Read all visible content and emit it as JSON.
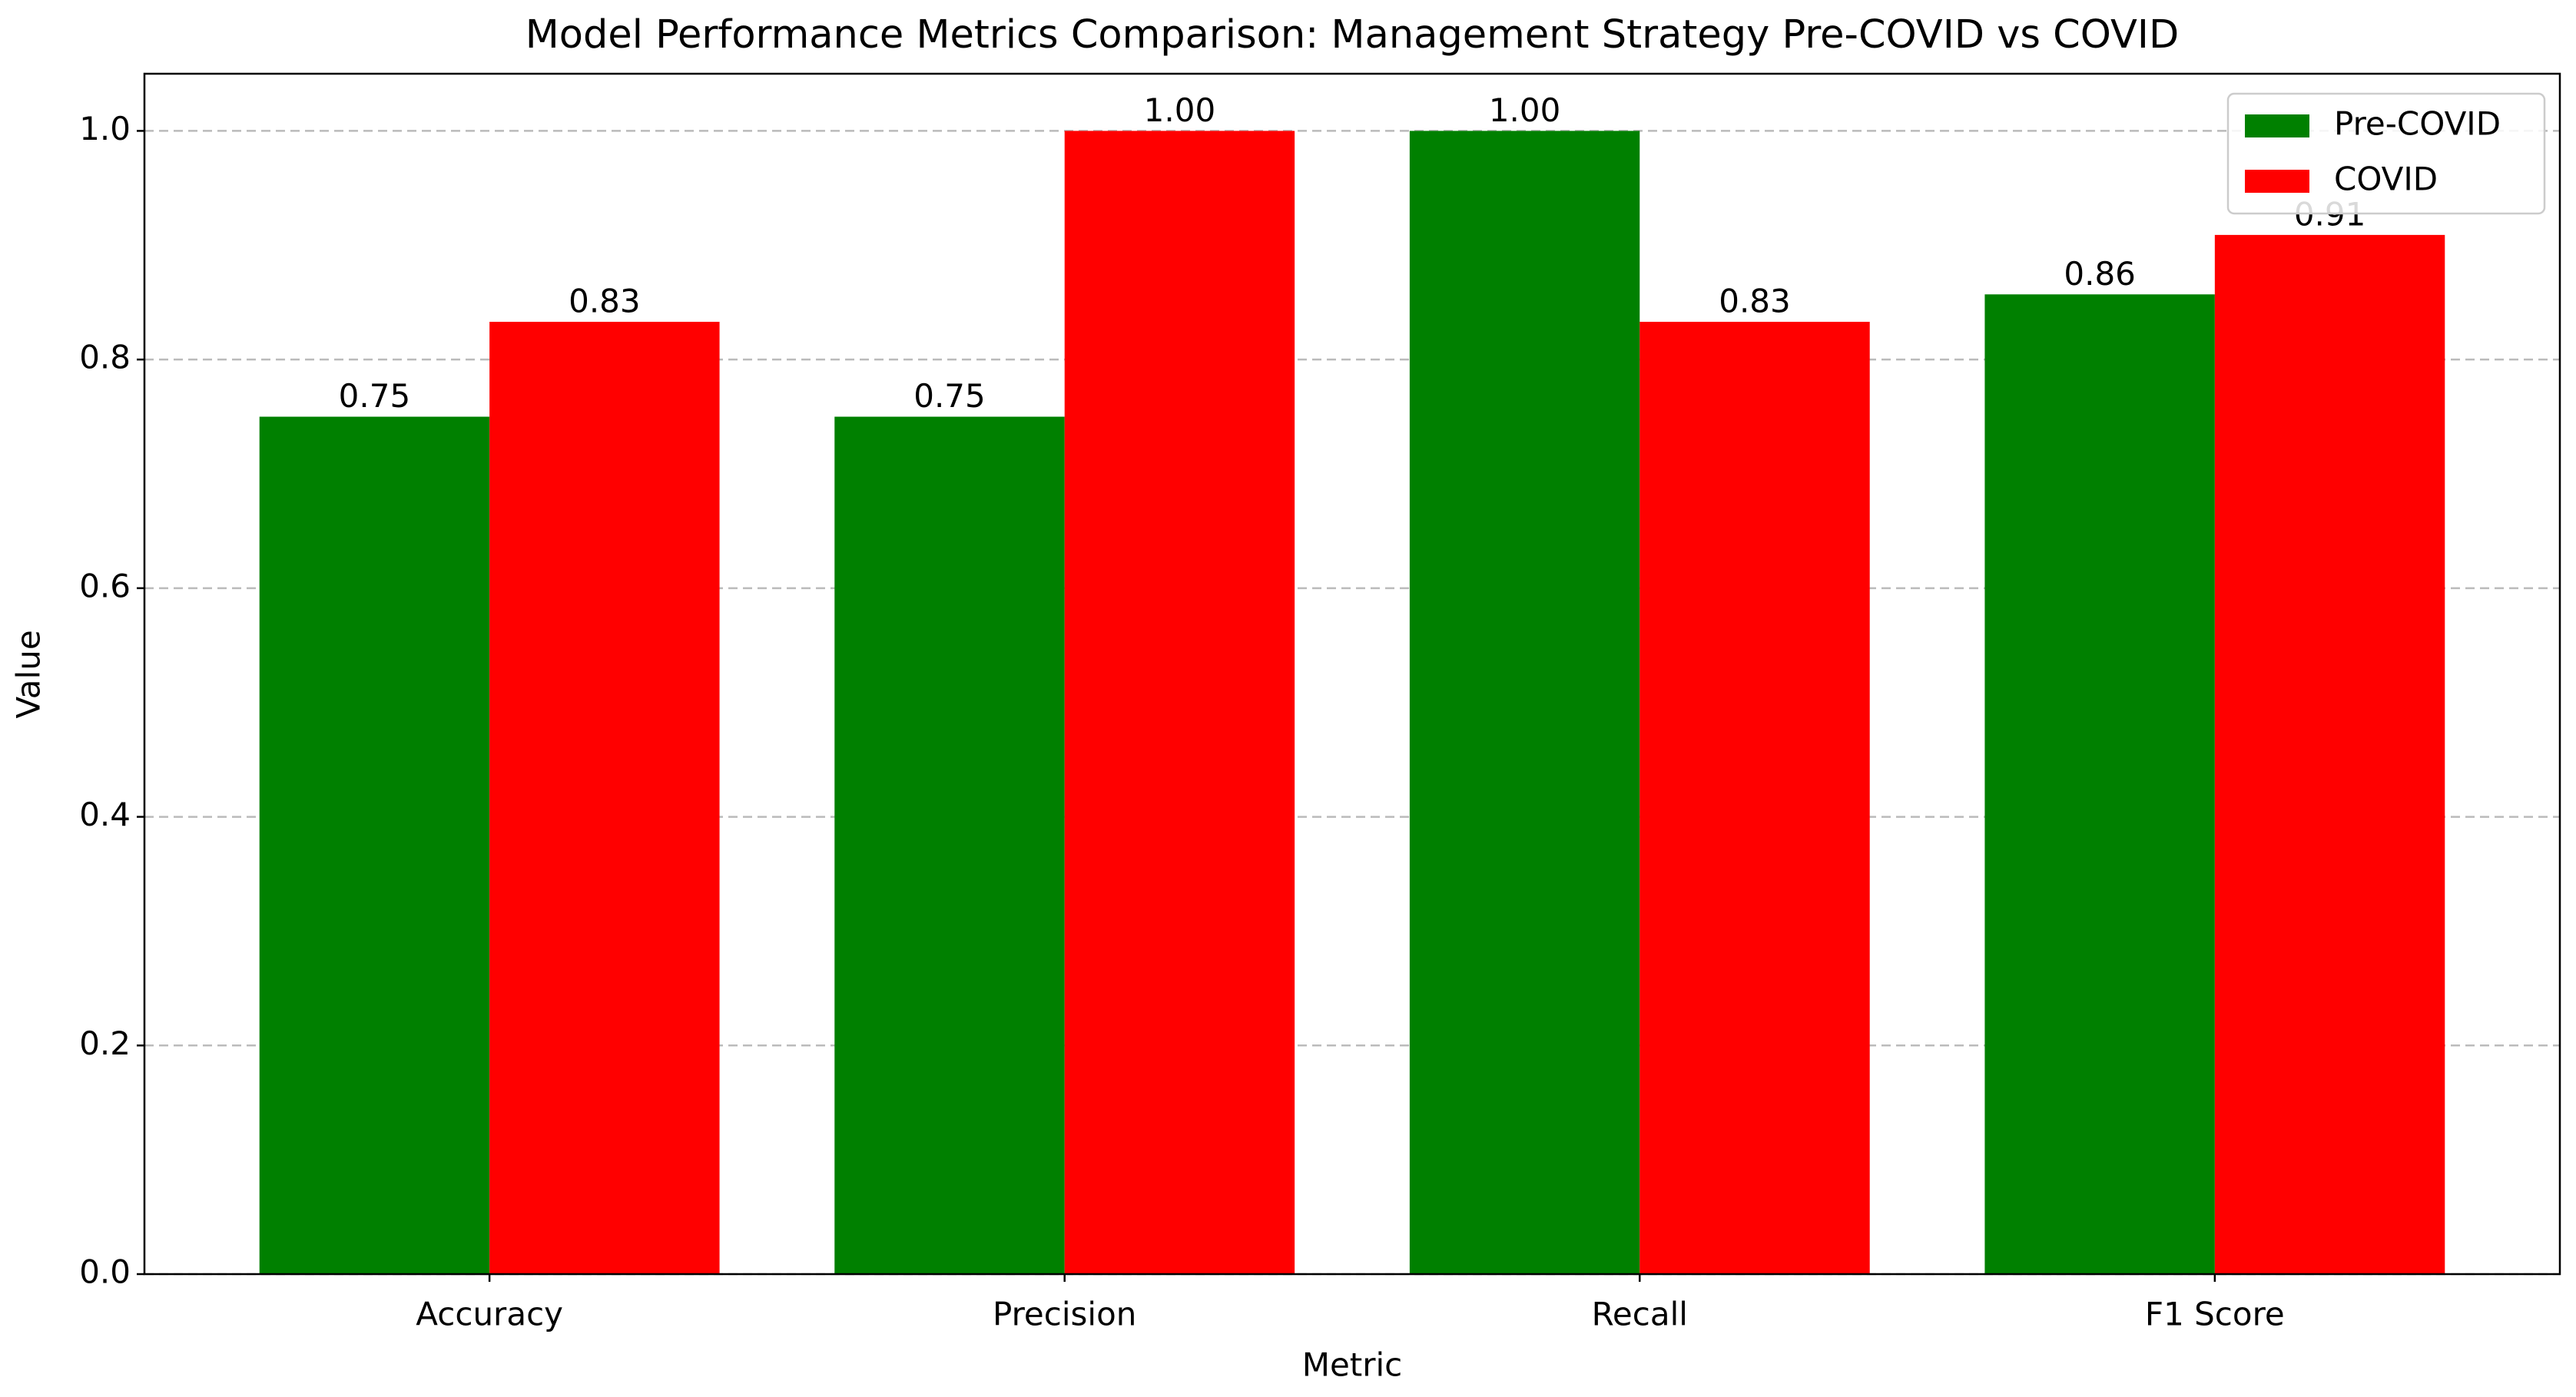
{
  "chart_data": {
    "type": "bar",
    "title": "Model Performance Metrics Comparison: Management Strategy Pre-COVID vs COVID",
    "x_label": "Metric",
    "y_label": "Value",
    "categories": [
      "Accuracy",
      "Precision",
      "Recall",
      "F1 Score"
    ],
    "series": [
      {
        "name": "Pre-COVID",
        "color": "#008000",
        "values": [
          0.75,
          0.75,
          1.0,
          0.857
        ],
        "value_labels": [
          "0.75",
          "0.75",
          "1.00",
          "0.86"
        ]
      },
      {
        "name": "COVID",
        "color": "#ff0000",
        "values": [
          0.833,
          1.0,
          0.833,
          0.909
        ],
        "value_labels": [
          "0.83",
          "1.00",
          "0.83",
          "0.91"
        ]
      }
    ],
    "ylim": [
      0,
      1.05
    ],
    "yticks": [
      {
        "value": 0,
        "label": "0.0"
      },
      {
        "value": 0.2,
        "label": "0.2"
      },
      {
        "value": 0.4,
        "label": "0.4"
      },
      {
        "value": 0.6,
        "label": "0.6"
      },
      {
        "value": 0.8,
        "label": "0.8"
      },
      {
        "value": 1.0,
        "label": "1.0"
      }
    ],
    "grid": true,
    "legend": "upper right"
  }
}
